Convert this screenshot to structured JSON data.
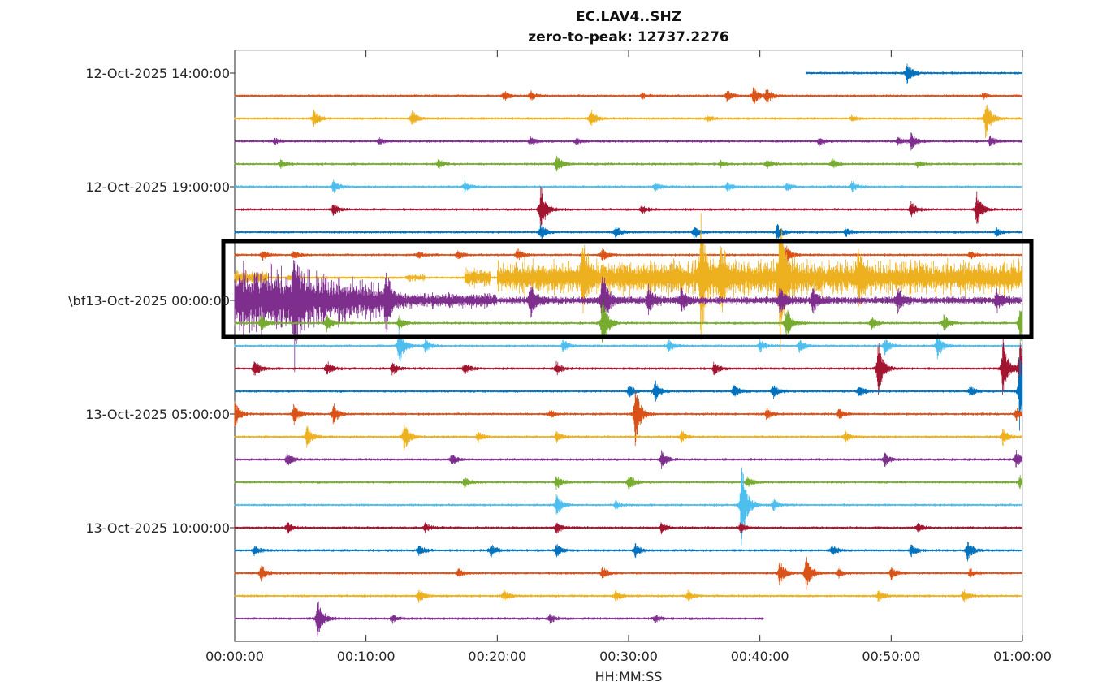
{
  "chart_data": {
    "type": "helicorder",
    "title": "EC.LAV4..SHZ",
    "subtitle": "zero-to-peak: 12737.2276",
    "xlabel": "HH:MM:SS",
    "x_ticks": [
      "00:00:00",
      "00:10:00",
      "00:20:00",
      "00:30:00",
      "00:40:00",
      "00:50:00",
      "01:00:00"
    ],
    "xlim_minutes": [
      0,
      60
    ],
    "y_tick_labels": [
      {
        "row": 0,
        "label": "12-Oct-2025 14:00:00"
      },
      {
        "row": 5,
        "label": "12-Oct-2025 19:00:00"
      },
      {
        "row": 10,
        "label": "\\bf13-Oct-2025 00:00:00"
      },
      {
        "row": 15,
        "label": "13-Oct-2025 05:00:00"
      },
      {
        "row": 20,
        "label": "13-Oct-2025 10:00:00"
      }
    ],
    "row_duration_minutes": 60,
    "amplitude_unit": "fraction of trace spacing",
    "colors": [
      "#0072BD",
      "#D95319",
      "#EDB120",
      "#7E2F8E",
      "#77AC30",
      "#4DBEEE",
      "#A2142F"
    ],
    "highlight_box_rows": [
      8,
      11
    ],
    "noise_level": 0.05,
    "rows": [
      {
        "start": 43.5,
        "end": 60,
        "events": [
          [
            51.2,
            0.5
          ]
        ]
      },
      {
        "events": [
          [
            20.5,
            0.25
          ],
          [
            22.5,
            0.25
          ],
          [
            31,
            0.15
          ],
          [
            37.5,
            0.3
          ],
          [
            39.5,
            0.45
          ],
          [
            40.5,
            0.35
          ],
          [
            57,
            0.15
          ]
        ]
      },
      {
        "events": [
          [
            6,
            0.4
          ],
          [
            13.5,
            0.35
          ],
          [
            27.1,
            0.45
          ],
          [
            36,
            0.15
          ],
          [
            47,
            0.15
          ],
          [
            57.2,
            0.9
          ]
        ]
      },
      {
        "events": [
          [
            3,
            0.15
          ],
          [
            11,
            0.15
          ],
          [
            22.5,
            0.2
          ],
          [
            26,
            0.15
          ],
          [
            44.5,
            0.2
          ],
          [
            50.5,
            0.2
          ],
          [
            51.5,
            0.4
          ],
          [
            57.5,
            0.25
          ]
        ]
      },
      {
        "events": [
          [
            3.5,
            0.2
          ],
          [
            15.5,
            0.2
          ],
          [
            24.5,
            0.4
          ],
          [
            37,
            0.15
          ],
          [
            40.5,
            0.2
          ],
          [
            45.5,
            0.25
          ],
          [
            52,
            0.15
          ]
        ]
      },
      {
        "events": [
          [
            7.5,
            0.3
          ],
          [
            17.5,
            0.25
          ],
          [
            32,
            0.2
          ],
          [
            37.5,
            0.2
          ],
          [
            42,
            0.2
          ],
          [
            47,
            0.25
          ]
        ]
      },
      {
        "events": [
          [
            7.5,
            0.3
          ],
          [
            23.3,
            1.2
          ],
          [
            31,
            0.2
          ],
          [
            51.5,
            0.35
          ],
          [
            56.5,
            0.8
          ]
        ]
      },
      {
        "events": [
          [
            23.3,
            0.4
          ],
          [
            29,
            0.3
          ],
          [
            35,
            0.3
          ],
          [
            41.3,
            0.4
          ],
          [
            46.5,
            0.2
          ],
          [
            58,
            0.2
          ]
        ]
      },
      {
        "events": [
          [
            2.1,
            0.25
          ],
          [
            4.5,
            0.2
          ],
          [
            14,
            0.15
          ],
          [
            17,
            0.2
          ],
          [
            21.5,
            0.3
          ],
          [
            28,
            0.3
          ],
          [
            42,
            0.4
          ],
          [
            56,
            0.2
          ]
        ]
      },
      {
        "bursts": [
          [
            0,
            2.5,
            0.3
          ],
          [
            4,
            5,
            0.15
          ],
          [
            13,
            14.5,
            0.15
          ],
          [
            17.5,
            19.5,
            0.45
          ],
          [
            20,
            60,
            0.85
          ]
        ],
        "events": [
          [
            35.5,
            2.5
          ],
          [
            37,
            1.5
          ],
          [
            41.5,
            3.0
          ],
          [
            26.5,
            1.2
          ],
          [
            47.5,
            1.0
          ]
        ]
      },
      {
        "bursts": [
          [
            0,
            12,
            2.0
          ],
          [
            12,
            20,
            0.35
          ],
          [
            20,
            60,
            0.15
          ]
        ],
        "events": [
          [
            4.5,
            2.5
          ],
          [
            11.5,
            1.2
          ],
          [
            22.5,
            0.9
          ],
          [
            28,
            1.5
          ],
          [
            31.5,
            0.6
          ],
          [
            34,
            0.5
          ],
          [
            41.5,
            0.6
          ],
          [
            44,
            0.6
          ],
          [
            50.5,
            0.5
          ],
          [
            58,
            0.5
          ]
        ]
      },
      {
        "events": [
          [
            2,
            0.4
          ],
          [
            7,
            0.4
          ],
          [
            12.5,
            0.3
          ],
          [
            28,
            1.3
          ],
          [
            42,
            0.8
          ],
          [
            48.5,
            0.3
          ],
          [
            54,
            0.4
          ],
          [
            59.8,
            1.0
          ]
        ]
      },
      {
        "events": [
          [
            12.5,
            0.9
          ],
          [
            14.5,
            0.3
          ],
          [
            25,
            0.3
          ],
          [
            33,
            0.3
          ],
          [
            40,
            0.3
          ],
          [
            43,
            0.3
          ],
          [
            49.5,
            0.4
          ],
          [
            53.5,
            0.6
          ]
        ]
      },
      {
        "events": [
          [
            1.5,
            0.4
          ],
          [
            7,
            0.35
          ],
          [
            12,
            0.3
          ],
          [
            17.5,
            0.3
          ],
          [
            24.5,
            0.3
          ],
          [
            36.5,
            0.3
          ],
          [
            49,
            1.3
          ],
          [
            58.5,
            1.4
          ],
          [
            59.8,
            1.4
          ]
        ]
      },
      {
        "events": [
          [
            30,
            0.3
          ],
          [
            32,
            0.5
          ],
          [
            38,
            0.3
          ],
          [
            41,
            0.35
          ],
          [
            47.5,
            0.3
          ],
          [
            56,
            0.25
          ],
          [
            59.8,
            2.0
          ]
        ]
      },
      {
        "events": [
          [
            0,
            0.6
          ],
          [
            4.5,
            0.5
          ],
          [
            7.5,
            0.5
          ],
          [
            24,
            0.2
          ],
          [
            30.5,
            1.4
          ],
          [
            40.5,
            0.25
          ],
          [
            46,
            0.25
          ],
          [
            59.5,
            0.3
          ]
        ]
      },
      {
        "events": [
          [
            5.5,
            0.55
          ],
          [
            12.9,
            0.7
          ],
          [
            18.5,
            0.25
          ],
          [
            24.5,
            0.25
          ],
          [
            34,
            0.3
          ],
          [
            46.5,
            0.25
          ],
          [
            58.5,
            0.4
          ]
        ]
      },
      {
        "events": [
          [
            4,
            0.3
          ],
          [
            16.5,
            0.3
          ],
          [
            32.5,
            0.4
          ],
          [
            49.5,
            0.3
          ],
          [
            59.5,
            0.4
          ]
        ]
      },
      {
        "events": [
          [
            17.5,
            0.25
          ],
          [
            24.5,
            0.3
          ],
          [
            30,
            0.4
          ],
          [
            39,
            0.25
          ],
          [
            59.8,
            0.3
          ]
        ]
      },
      {
        "events": [
          [
            24.5,
            0.5
          ],
          [
            29,
            0.2
          ],
          [
            38.6,
            2.0
          ],
          [
            41,
            0.3
          ]
        ]
      },
      {
        "events": [
          [
            4,
            0.25
          ],
          [
            14.5,
            0.2
          ],
          [
            24.5,
            0.3
          ],
          [
            32.5,
            0.25
          ],
          [
            38.5,
            0.25
          ],
          [
            52,
            0.2
          ]
        ]
      },
      {
        "events": [
          [
            1.5,
            0.25
          ],
          [
            14,
            0.25
          ],
          [
            19.5,
            0.3
          ],
          [
            24.5,
            0.3
          ],
          [
            30.5,
            0.3
          ],
          [
            45.5,
            0.25
          ],
          [
            51.5,
            0.3
          ],
          [
            55.8,
            0.45
          ]
        ]
      },
      {
        "events": [
          [
            2,
            0.4
          ],
          [
            17,
            0.2
          ],
          [
            28,
            0.3
          ],
          [
            41.5,
            0.6
          ],
          [
            43.5,
            0.8
          ],
          [
            46,
            0.2
          ],
          [
            50,
            0.3
          ],
          [
            56,
            0.2
          ]
        ]
      },
      {
        "events": [
          [
            14,
            0.3
          ],
          [
            20.5,
            0.25
          ],
          [
            29,
            0.25
          ],
          [
            34.5,
            0.25
          ],
          [
            49,
            0.25
          ],
          [
            55.5,
            0.3
          ]
        ]
      },
      {
        "start": 0,
        "end": 40.3,
        "events": [
          [
            6.3,
            1.0
          ],
          [
            12,
            0.2
          ],
          [
            24,
            0.2
          ],
          [
            32,
            0.2
          ]
        ]
      }
    ]
  }
}
